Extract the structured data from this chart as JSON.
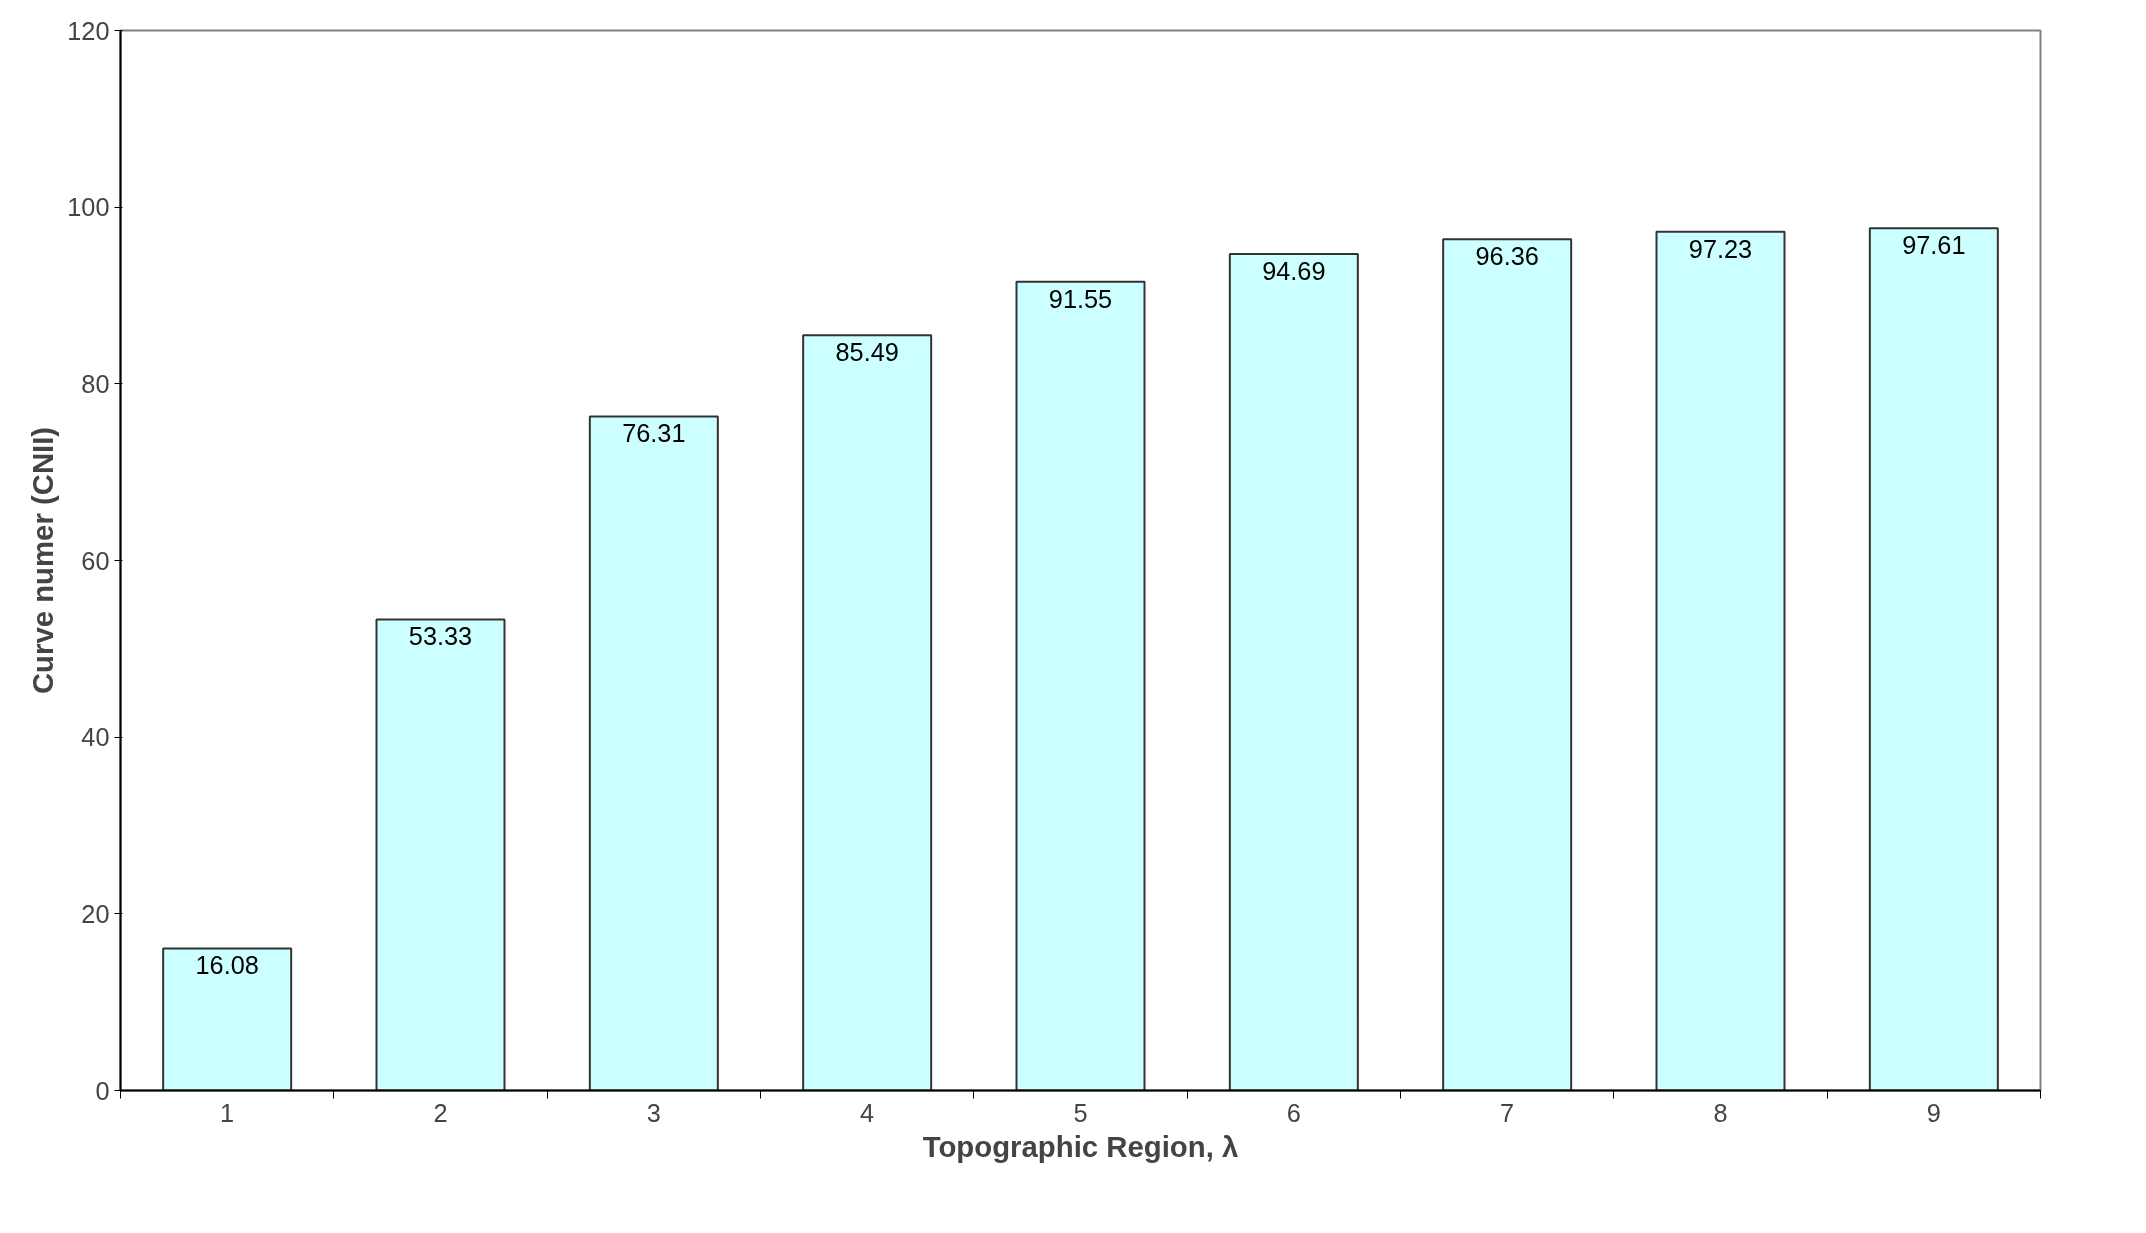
{
  "chart_data": {
    "type": "bar",
    "xlabel": "Topographic Region, λ",
    "ylabel": "Curve numer (CNII)",
    "categories": [
      "1",
      "2",
      "3",
      "4",
      "5",
      "6",
      "7",
      "8",
      "9"
    ],
    "values": [
      16.08,
      53.33,
      76.31,
      85.49,
      91.55,
      94.69,
      96.36,
      97.23,
      97.61
    ],
    "color": "#ccffff",
    "ylim": [
      0,
      120
    ],
    "yticks": [
      0,
      20,
      40,
      60,
      80,
      100,
      120
    ],
    "grid": false,
    "data_labels": true
  }
}
